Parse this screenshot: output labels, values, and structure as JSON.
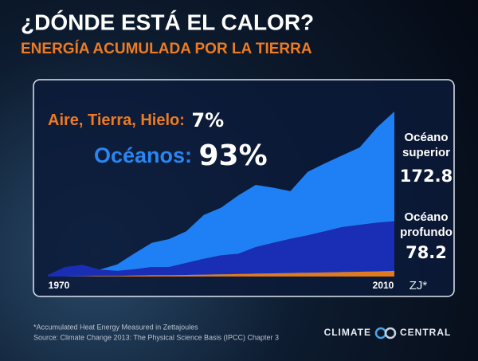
{
  "chart_data": {
    "type": "stacked_area",
    "title": "¿DÓNDE ESTÁ EL CALOR?",
    "subtitle": "ENERGÍA ACUMULADA POR LA TIERRA",
    "annotations": [
      {
        "text": "Aire, Tierra, Hielo:",
        "value_label": "7%",
        "color": "#ee7b22"
      },
      {
        "text": "Océanos:",
        "value_label": "93%",
        "color": "#2a86f2"
      }
    ],
    "x": [
      1970,
      1972,
      1974,
      1976,
      1978,
      1980,
      1982,
      1984,
      1986,
      1988,
      1990,
      1992,
      1994,
      1996,
      1998,
      2000,
      2002,
      2004,
      2006,
      2008,
      2010
    ],
    "xlim": [
      1970,
      2010
    ],
    "xticks": [
      1970,
      2010
    ],
    "ylim": [
      0,
      260
    ],
    "unit_label": "ZJ*",
    "series": [
      {
        "name": "Océano superior",
        "color": "#1f80f5",
        "values": [
          0,
          0,
          0,
          0,
          10,
          25,
          38,
          44,
          50,
          69,
          75,
          92,
          98,
          87,
          75,
          100,
          107,
          113,
          122,
          150,
          172.8
        ]
      },
      {
        "name": "Océano profundo",
        "color": "#1a2db5",
        "values": [
          2.5,
          15,
          18,
          10,
          8,
          10,
          13,
          13,
          19,
          25,
          30,
          32,
          42,
          48,
          54,
          59,
          65,
          71,
          74,
          77,
          78.2
        ]
      },
      {
        "name": "Aire, Tierra, Hielo",
        "color": "#e07a1f",
        "values": [
          0,
          0,
          0.5,
          1,
          1,
          1.5,
          2,
          2,
          2.5,
          3,
          3.5,
          4,
          4.5,
          5,
          5.5,
          6,
          6.5,
          7,
          7.5,
          8,
          9
        ]
      }
    ],
    "footnotes": [
      "*Accumulated Heat Energy Measured in Zettajoules",
      "Source: Climate Change 2013: The Physical Science Basis (IPCC) Chapter 3"
    ],
    "logo": [
      "CLIMATE",
      "CENTRAL"
    ]
  }
}
